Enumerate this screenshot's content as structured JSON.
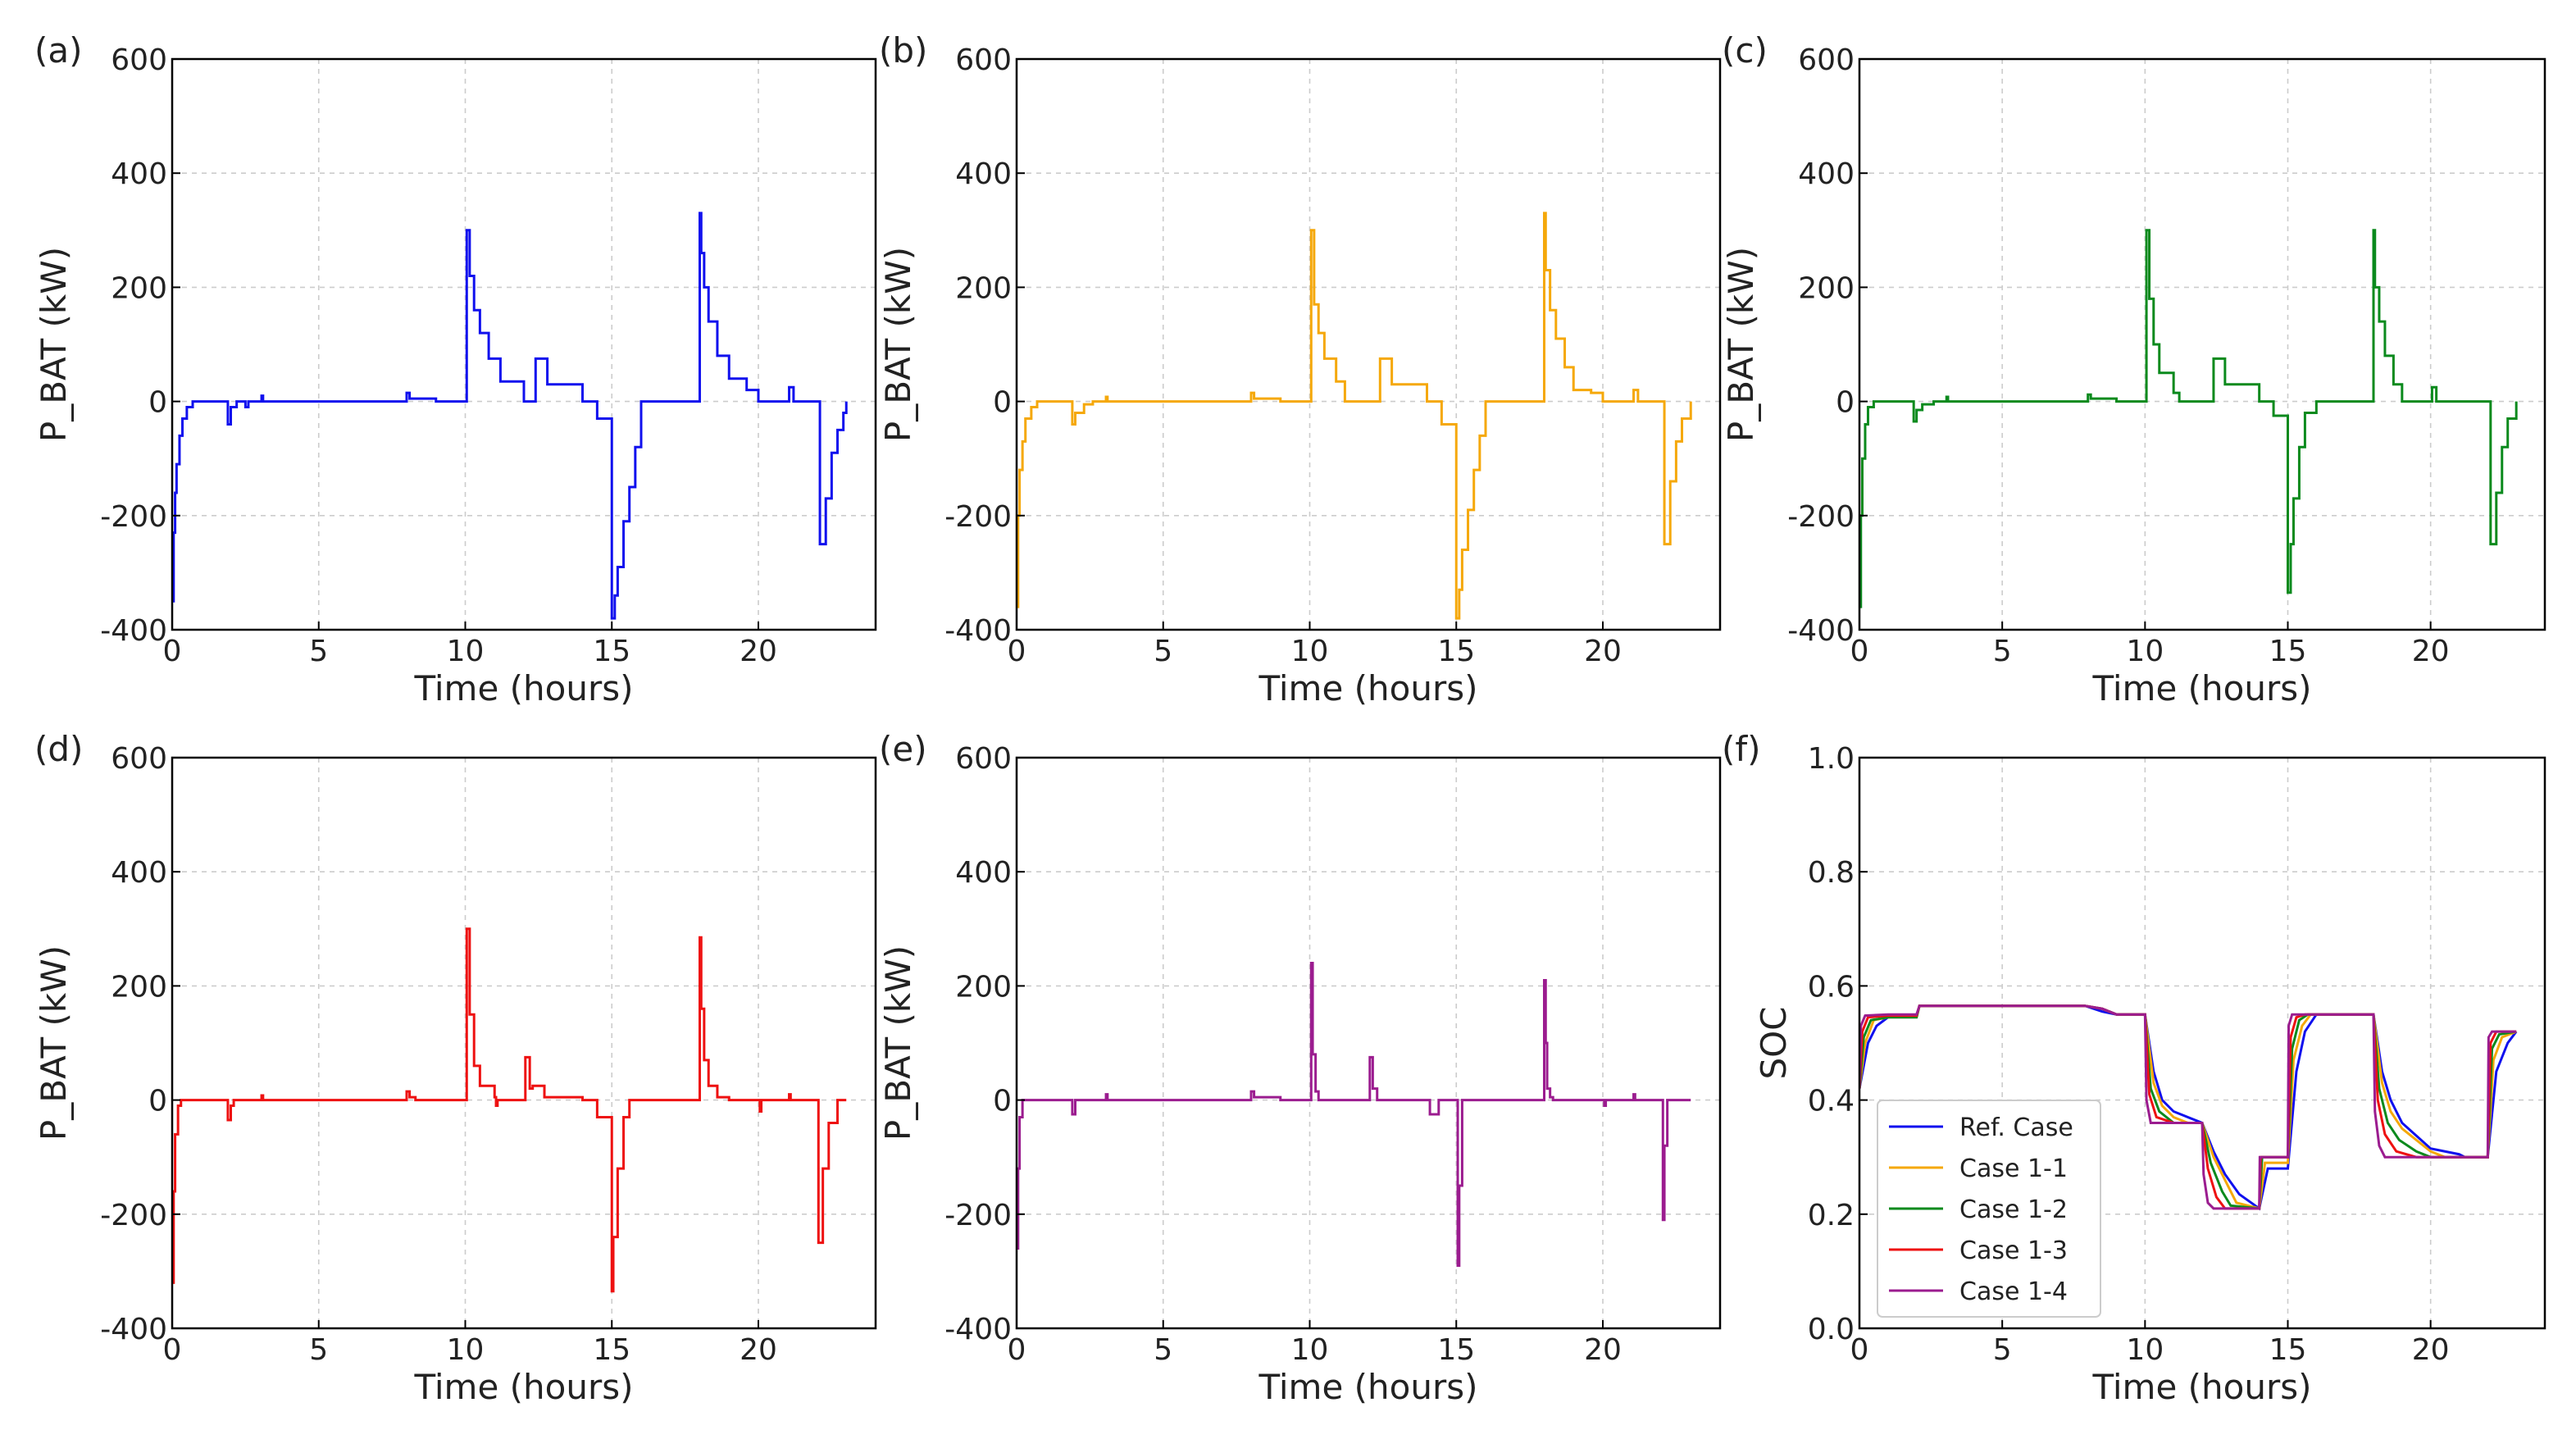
{
  "chart_data": [
    {
      "panel_label": "(a)",
      "type": "line",
      "step": true,
      "xlabel": "Time (hours)",
      "ylabel": "P_BAT (kW)",
      "xlim": [
        0,
        24
      ],
      "ylim": [
        -400,
        600
      ],
      "xticks": [
        0,
        5,
        10,
        15,
        20
      ],
      "yticks": [
        -400,
        -200,
        0,
        200,
        400,
        600
      ],
      "color": "#1010ee",
      "series": [
        {
          "name": "Ref. Case",
          "x": [
            0,
            0.05,
            0.1,
            0.15,
            0.25,
            0.35,
            0.5,
            0.7,
            1.0,
            1.9,
            2.0,
            2.2,
            2.5,
            2.6,
            3.0,
            3.05,
            3.1,
            7.9,
            8.0,
            8.1,
            8.8,
            9.0,
            9.5,
            10.0,
            10.05,
            10.15,
            10.3,
            10.5,
            10.8,
            11.2,
            12.0,
            12.4,
            12.8,
            14.0,
            14.5,
            15.0,
            15.1,
            15.2,
            15.4,
            15.6,
            15.8,
            16.0,
            17.9,
            18.0,
            18.05,
            18.15,
            18.3,
            18.6,
            19.0,
            19.6,
            20.0,
            21.0,
            21.05,
            21.2,
            22.0,
            22.1,
            22.3,
            22.5,
            22.7,
            22.9,
            23.0
          ],
          "values": [
            -350,
            -230,
            -160,
            -110,
            -60,
            -30,
            -10,
            0,
            0,
            -40,
            -10,
            0,
            -10,
            0,
            0,
            10,
            0,
            0,
            15,
            5,
            5,
            0,
            0,
            0,
            300,
            220,
            160,
            120,
            75,
            35,
            0,
            75,
            30,
            0,
            -30,
            -380,
            -340,
            -290,
            -210,
            -150,
            -80,
            0,
            0,
            330,
            260,
            200,
            140,
            80,
            40,
            20,
            0,
            0,
            25,
            0,
            0,
            -250,
            -170,
            -90,
            -50,
            -20,
            0
          ]
        }
      ]
    },
    {
      "panel_label": "(b)",
      "type": "line",
      "step": true,
      "xlabel": "Time (hours)",
      "ylabel": "P_BAT (kW)",
      "xlim": [
        0,
        24
      ],
      "ylim": [
        -400,
        600
      ],
      "xticks": [
        0,
        5,
        10,
        15,
        20
      ],
      "yticks": [
        -400,
        -200,
        0,
        200,
        400,
        600
      ],
      "color": "#f5a80a",
      "series": [
        {
          "name": "Case 1-1",
          "x": [
            0,
            0.05,
            0.1,
            0.2,
            0.3,
            0.5,
            0.7,
            1.0,
            1.9,
            2.0,
            2.3,
            2.6,
            3.0,
            3.05,
            3.1,
            7.9,
            8.0,
            8.1,
            8.8,
            9.0,
            9.5,
            10.0,
            10.05,
            10.15,
            10.3,
            10.5,
            10.9,
            11.2,
            12.0,
            12.4,
            12.8,
            14.0,
            14.5,
            15.0,
            15.1,
            15.2,
            15.4,
            15.6,
            15.8,
            16.0,
            17.9,
            18.0,
            18.05,
            18.2,
            18.4,
            18.7,
            19.0,
            19.6,
            20.0,
            21.0,
            21.05,
            21.2,
            22.0,
            22.1,
            22.3,
            22.5,
            22.7,
            23.0
          ],
          "values": [
            -360,
            -200,
            -120,
            -70,
            -30,
            -10,
            0,
            0,
            -40,
            -20,
            -5,
            0,
            0,
            8,
            0,
            0,
            15,
            5,
            5,
            0,
            0,
            0,
            300,
            170,
            120,
            75,
            35,
            0,
            0,
            75,
            30,
            0,
            -40,
            -380,
            -330,
            -260,
            -190,
            -120,
            -60,
            0,
            0,
            330,
            230,
            160,
            110,
            60,
            20,
            15,
            0,
            0,
            20,
            0,
            0,
            -250,
            -140,
            -70,
            -30,
            0
          ]
        }
      ]
    },
    {
      "panel_label": "(c)",
      "type": "line",
      "step": true,
      "xlabel": "Time (hours)",
      "ylabel": "P_BAT (kW)",
      "xlim": [
        0,
        24
      ],
      "ylim": [
        -400,
        600
      ],
      "xticks": [
        0,
        5,
        10,
        15,
        20
      ],
      "yticks": [
        -400,
        -200,
        0,
        200,
        400,
        600
      ],
      "color": "#0b8a1d",
      "series": [
        {
          "name": "Case 1-2",
          "x": [
            0,
            0.05,
            0.1,
            0.2,
            0.3,
            0.5,
            1.0,
            1.9,
            2.0,
            2.2,
            2.6,
            3.0,
            3.05,
            3.1,
            7.9,
            8.0,
            8.1,
            8.8,
            9.0,
            9.5,
            10.0,
            10.05,
            10.15,
            10.3,
            10.5,
            11.0,
            11.2,
            12.0,
            12.4,
            12.8,
            14.0,
            14.5,
            15.0,
            15.1,
            15.2,
            15.4,
            15.6,
            16.0,
            17.9,
            18.0,
            18.05,
            18.2,
            18.4,
            18.7,
            19.0,
            20.0,
            20.05,
            20.2,
            21.0,
            21.05,
            21.2,
            22.0,
            22.1,
            22.3,
            22.5,
            22.7,
            23.0
          ],
          "values": [
            -360,
            -200,
            -100,
            -40,
            -10,
            0,
            0,
            -35,
            -15,
            -5,
            0,
            0,
            8,
            0,
            0,
            12,
            5,
            5,
            0,
            0,
            0,
            300,
            180,
            100,
            50,
            15,
            0,
            0,
            75,
            30,
            0,
            -25,
            -335,
            -250,
            -170,
            -80,
            -20,
            0,
            0,
            300,
            200,
            140,
            80,
            30,
            0,
            0,
            25,
            0,
            0,
            0,
            0,
            0,
            -250,
            -160,
            -80,
            -30,
            0
          ]
        }
      ]
    },
    {
      "panel_label": "(d)",
      "type": "line",
      "step": true,
      "xlabel": "Time (hours)",
      "ylabel": "P_BAT (kW)",
      "xlim": [
        0,
        24
      ],
      "ylim": [
        -400,
        600
      ],
      "xticks": [
        0,
        5,
        10,
        15,
        20
      ],
      "yticks": [
        -400,
        -200,
        0,
        200,
        400,
        600
      ],
      "color": "#ee1111",
      "series": [
        {
          "name": "Case 1-3",
          "x": [
            0,
            0.05,
            0.1,
            0.2,
            0.3,
            1.9,
            2.0,
            2.1,
            3.0,
            3.05,
            3.1,
            7.9,
            8.0,
            8.1,
            8.3,
            10.0,
            10.05,
            10.15,
            10.3,
            10.5,
            11.0,
            11.05,
            11.1,
            12.0,
            12.05,
            12.2,
            12.3,
            12.7,
            14.0,
            14.5,
            15.0,
            15.05,
            15.2,
            15.4,
            15.6,
            17.9,
            18.0,
            18.05,
            18.15,
            18.3,
            18.6,
            19.0,
            20.0,
            20.05,
            20.1,
            21.0,
            21.05,
            21.1,
            22.0,
            22.05,
            22.2,
            22.4,
            22.7,
            23.0
          ],
          "values": [
            -320,
            -160,
            -60,
            -10,
            0,
            -35,
            -10,
            0,
            0,
            8,
            0,
            0,
            15,
            5,
            0,
            0,
            300,
            150,
            60,
            25,
            5,
            -10,
            0,
            0,
            75,
            20,
            25,
            5,
            0,
            -30,
            -335,
            -240,
            -120,
            -30,
            0,
            0,
            285,
            160,
            70,
            25,
            5,
            0,
            0,
            -20,
            0,
            0,
            10,
            0,
            0,
            -250,
            -120,
            -40,
            0,
            0
          ]
        }
      ]
    },
    {
      "panel_label": "(e)",
      "type": "line",
      "step": true,
      "xlabel": "Time (hours)",
      "ylabel": "P_BAT (kW)",
      "xlim": [
        0,
        24
      ],
      "ylim": [
        -400,
        600
      ],
      "xticks": [
        0,
        5,
        10,
        15,
        20
      ],
      "yticks": [
        -400,
        -200,
        0,
        200,
        400,
        600
      ],
      "color": "#9b1c8f",
      "series": [
        {
          "name": "Case 1-4",
          "x": [
            0,
            0.05,
            0.1,
            0.2,
            1.9,
            2.0,
            2.1,
            3.0,
            3.05,
            3.1,
            7.9,
            8.0,
            8.1,
            9.0,
            10.0,
            10.05,
            10.1,
            10.2,
            10.3,
            12.0,
            12.05,
            12.15,
            12.3,
            14.0,
            14.1,
            14.3,
            14.4,
            15.0,
            15.05,
            15.1,
            15.2,
            17.9,
            18.0,
            18.05,
            18.1,
            18.2,
            18.3,
            20.0,
            20.05,
            20.1,
            21.0,
            21.05,
            21.1,
            22.0,
            22.05,
            22.1,
            22.2,
            23.0
          ],
          "values": [
            -260,
            -120,
            -30,
            0,
            -25,
            0,
            0,
            0,
            10,
            0,
            0,
            15,
            5,
            0,
            0,
            240,
            80,
            15,
            0,
            0,
            75,
            20,
            0,
            0,
            -25,
            -25,
            0,
            0,
            -290,
            -150,
            0,
            0,
            210,
            100,
            20,
            5,
            0,
            0,
            -10,
            0,
            0,
            10,
            0,
            0,
            -210,
            -80,
            0,
            0
          ]
        }
      ]
    },
    {
      "panel_label": "(f)",
      "type": "line",
      "step": false,
      "xlabel": "Time (hours)",
      "ylabel": "SOC",
      "xlim": [
        0,
        24
      ],
      "ylim": [
        0.0,
        1.0
      ],
      "xticks": [
        0,
        5,
        10,
        15,
        20
      ],
      "yticks": [
        0.0,
        0.2,
        0.4,
        0.6,
        0.8,
        1.0
      ],
      "legend": {
        "position": "lower-left"
      },
      "series": [
        {
          "name": "Ref. Case",
          "color": "#1010ee",
          "x": [
            0,
            0.3,
            0.6,
            1.0,
            2.0,
            2.1,
            7.9,
            8.5,
            9.0,
            10.0,
            10.3,
            10.6,
            11.0,
            12.0,
            12.4,
            12.8,
            13.3,
            14.0,
            14.3,
            15.0,
            15.3,
            15.6,
            16.0,
            18.0,
            18.3,
            18.6,
            19.0,
            20.0,
            21.0,
            21.2,
            22.0,
            22.3,
            22.7,
            23.0
          ],
          "values": [
            0.42,
            0.5,
            0.53,
            0.545,
            0.545,
            0.565,
            0.565,
            0.555,
            0.55,
            0.55,
            0.45,
            0.4,
            0.38,
            0.36,
            0.31,
            0.27,
            0.235,
            0.21,
            0.28,
            0.28,
            0.45,
            0.52,
            0.55,
            0.55,
            0.45,
            0.4,
            0.36,
            0.315,
            0.305,
            0.3,
            0.3,
            0.45,
            0.5,
            0.52
          ]
        },
        {
          "name": "Case 1-1",
          "color": "#f5a80a",
          "x": [
            0,
            0.2,
            0.5,
            1.0,
            2.0,
            2.1,
            7.9,
            8.5,
            9.0,
            10.0,
            10.3,
            10.6,
            11.0,
            11.5,
            12.0,
            12.4,
            12.8,
            13.2,
            14.0,
            14.2,
            15.0,
            15.2,
            15.5,
            15.8,
            18.0,
            18.3,
            18.6,
            19.0,
            19.5,
            20.0,
            20.5,
            22.0,
            22.2,
            22.5,
            23.0
          ],
          "values": [
            0.42,
            0.5,
            0.54,
            0.545,
            0.545,
            0.565,
            0.565,
            0.56,
            0.55,
            0.55,
            0.43,
            0.39,
            0.37,
            0.36,
            0.36,
            0.3,
            0.26,
            0.22,
            0.21,
            0.29,
            0.29,
            0.47,
            0.53,
            0.55,
            0.55,
            0.43,
            0.38,
            0.35,
            0.33,
            0.31,
            0.3,
            0.3,
            0.47,
            0.51,
            0.52
          ]
        },
        {
          "name": "Case 1-2",
          "color": "#0b8a1d",
          "x": [
            0,
            0.15,
            0.4,
            1.0,
            2.0,
            2.1,
            7.9,
            8.5,
            9.0,
            10.0,
            10.2,
            10.5,
            11.0,
            12.0,
            12.3,
            12.7,
            13.0,
            14.0,
            14.1,
            15.0,
            15.15,
            15.4,
            15.7,
            18.0,
            18.2,
            18.5,
            18.9,
            19.5,
            20.0,
            22.0,
            22.15,
            22.4,
            23.0
          ],
          "values": [
            0.42,
            0.51,
            0.54,
            0.545,
            0.545,
            0.565,
            0.565,
            0.56,
            0.55,
            0.55,
            0.42,
            0.38,
            0.36,
            0.36,
            0.29,
            0.24,
            0.215,
            0.21,
            0.3,
            0.3,
            0.49,
            0.54,
            0.55,
            0.55,
            0.42,
            0.36,
            0.33,
            0.31,
            0.3,
            0.3,
            0.49,
            0.515,
            0.52
          ]
        },
        {
          "name": "Case 1-3",
          "color": "#ee1111",
          "x": [
            0,
            0.1,
            0.3,
            1.0,
            2.0,
            2.1,
            7.9,
            8.5,
            9.0,
            10.0,
            10.15,
            10.4,
            11.0,
            12.0,
            12.2,
            12.5,
            12.8,
            14.0,
            14.05,
            15.0,
            15.1,
            15.3,
            15.6,
            18.0,
            18.15,
            18.4,
            18.8,
            19.5,
            20.0,
            22.0,
            22.1,
            22.3,
            23.0
          ],
          "values": [
            0.42,
            0.52,
            0.545,
            0.548,
            0.548,
            0.565,
            0.565,
            0.56,
            0.55,
            0.55,
            0.41,
            0.37,
            0.36,
            0.36,
            0.28,
            0.23,
            0.21,
            0.21,
            0.3,
            0.3,
            0.51,
            0.545,
            0.55,
            0.55,
            0.4,
            0.34,
            0.31,
            0.3,
            0.3,
            0.3,
            0.5,
            0.52,
            0.52
          ]
        },
        {
          "name": "Case 1-4",
          "color": "#9b1c8f",
          "x": [
            0,
            0.05,
            0.2,
            1.0,
            2.0,
            2.1,
            7.9,
            8.5,
            9.0,
            10.0,
            10.05,
            10.2,
            12.0,
            12.05,
            12.2,
            12.4,
            14.0,
            14.02,
            15.0,
            15.03,
            15.15,
            18.0,
            18.05,
            18.2,
            18.4,
            22.0,
            22.03,
            22.15,
            23.0
          ],
          "values": [
            0.42,
            0.53,
            0.548,
            0.55,
            0.55,
            0.565,
            0.565,
            0.56,
            0.55,
            0.55,
            0.4,
            0.36,
            0.36,
            0.27,
            0.22,
            0.21,
            0.21,
            0.3,
            0.3,
            0.53,
            0.55,
            0.55,
            0.38,
            0.32,
            0.3,
            0.3,
            0.51,
            0.52,
            0.52
          ]
        }
      ]
    }
  ]
}
